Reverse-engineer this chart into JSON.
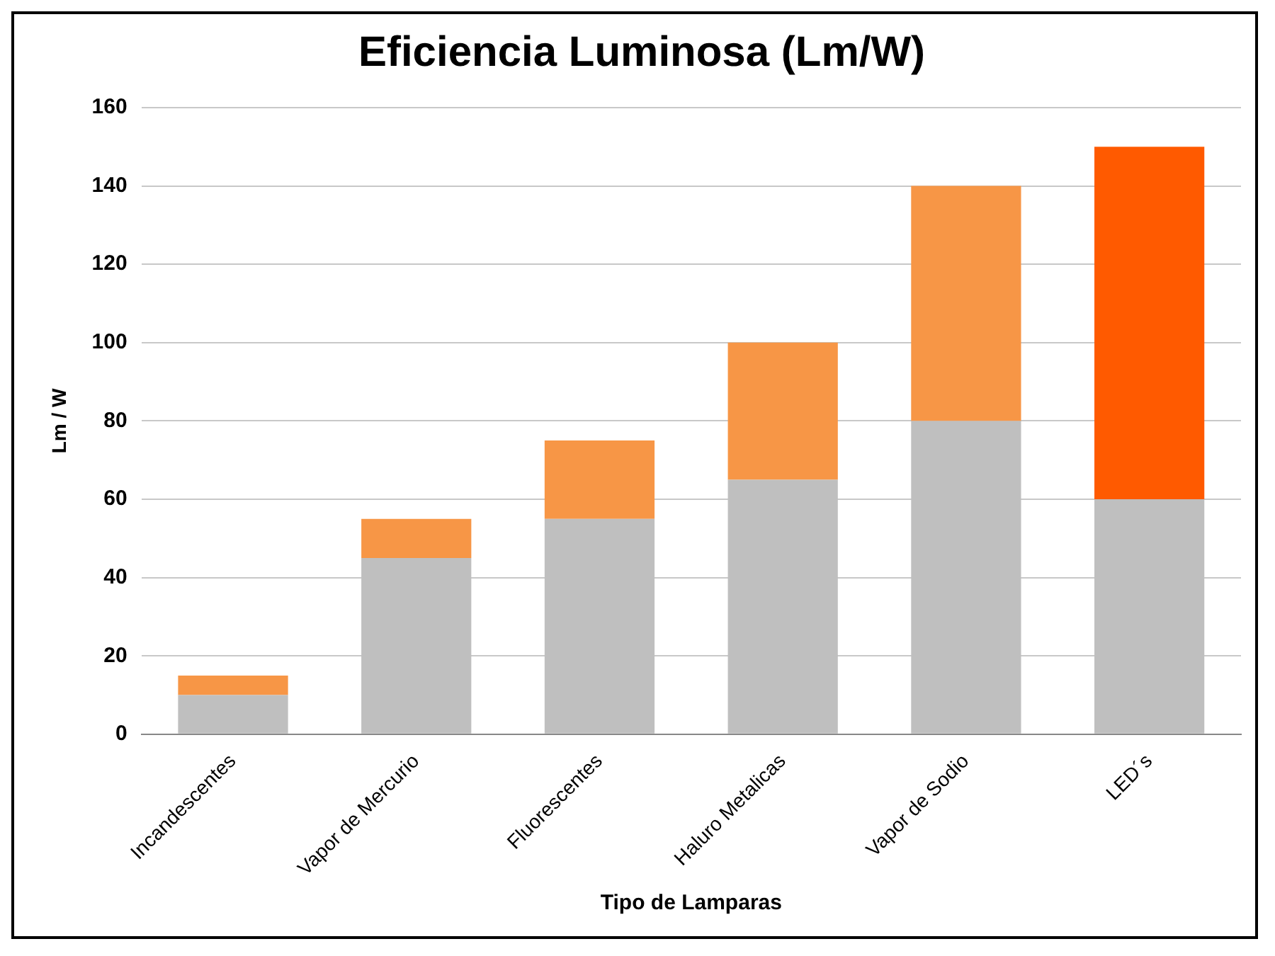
{
  "chart_data": {
    "type": "bar",
    "title": "Eficiencia Luminosa (Lm/W)",
    "xlabel": "Tipo de Lamparas",
    "ylabel": "Lm / W",
    "categories": [
      "Incandescentes",
      "Vapor de Mercurio",
      "Fluorescentes",
      "Haluro Metalicas",
      "Vapor de Sodio",
      "LED´s"
    ],
    "stacked": true,
    "series": [
      {
        "color": "#bfbfbf",
        "values": [
          10,
          45,
          55,
          65,
          80,
          60
        ]
      },
      {
        "color": "#f79646",
        "colors": [
          null,
          null,
          null,
          null,
          null,
          "#ff5a00"
        ],
        "values": [
          5,
          10,
          20,
          35,
          60,
          90
        ]
      }
    ],
    "ylim": [
      0,
      160
    ],
    "yticks": [
      0,
      20,
      40,
      60,
      80,
      100,
      120,
      140,
      160
    ],
    "grid": "y",
    "legend": false
  }
}
